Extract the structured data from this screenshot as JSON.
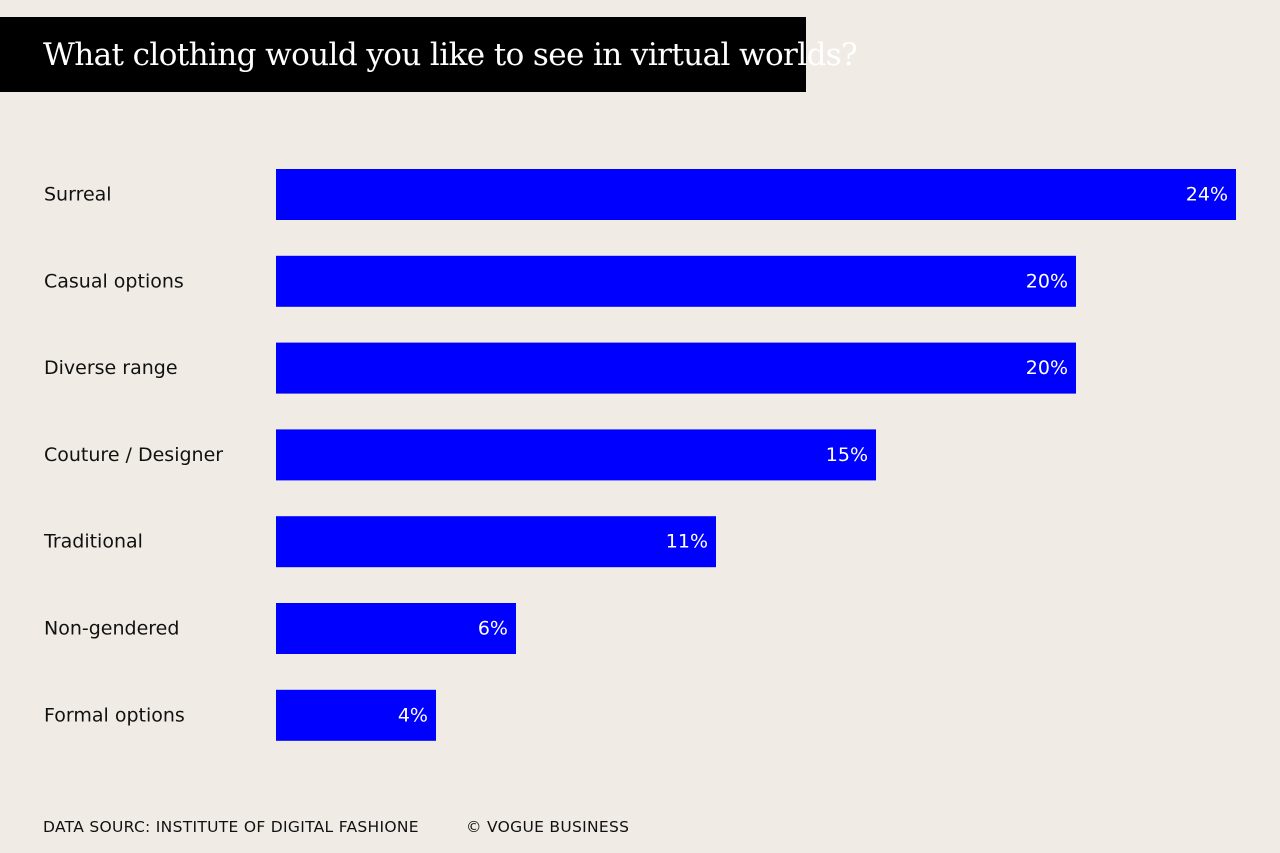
{
  "colors": {
    "background": "#f0ece5",
    "bar": "#0000ff",
    "title_bg": "#000000",
    "title_text": "#ffffff",
    "label_text": "#111111",
    "value_text": "#ffffff"
  },
  "chart_data": {
    "type": "bar",
    "orientation": "horizontal",
    "title": "What clothing would you like to see in virtual worlds?",
    "categories": [
      "Surreal",
      "Casual options",
      "Diverse range",
      "Couture / Designer",
      "Traditional",
      "Non-gendered",
      "Formal options"
    ],
    "values": [
      24,
      20,
      20,
      15,
      11,
      6,
      4
    ],
    "value_labels": [
      "24%",
      "20%",
      "20%",
      "15%",
      "11%",
      "6%",
      "4%"
    ],
    "unit": "%",
    "xlim": [
      0,
      24
    ],
    "xlabel": "",
    "ylabel": "",
    "grid": false,
    "legend": "none"
  },
  "footer": {
    "source": "DATA SOURC: INSTITUTE OF DIGITAL FASHIONE",
    "credit": "© VOGUE BUSINESS"
  }
}
